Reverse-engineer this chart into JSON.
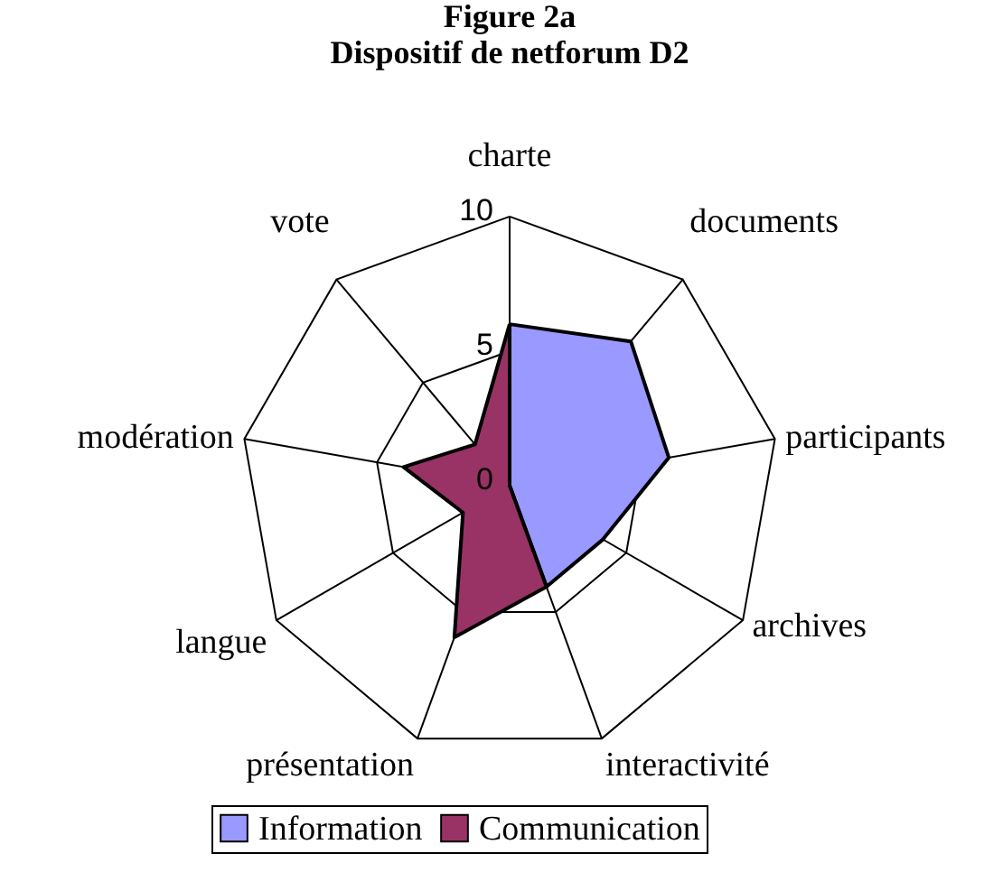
{
  "chart_data": {
    "type": "radar",
    "title": "Figure 2a",
    "subtitle": "Dispositif de netforum D2",
    "categories": [
      "charte",
      "documents",
      "participants",
      "archives",
      "interactivité",
      "présentation",
      "langue",
      "modération",
      "vote"
    ],
    "series": [
      {
        "name": "Information",
        "color": "#9999ff",
        "values": [
          6,
          7,
          6,
          4,
          4,
          0,
          0,
          0,
          0
        ]
      },
      {
        "name": "Communication",
        "color": "#993366",
        "values": [
          6,
          0,
          0,
          0,
          4,
          6,
          2,
          4,
          2
        ]
      }
    ],
    "ylim": [
      0,
      10
    ],
    "yticks": [
      0,
      5,
      10
    ],
    "grid": true,
    "legend": "bottom",
    "marker": "none"
  }
}
